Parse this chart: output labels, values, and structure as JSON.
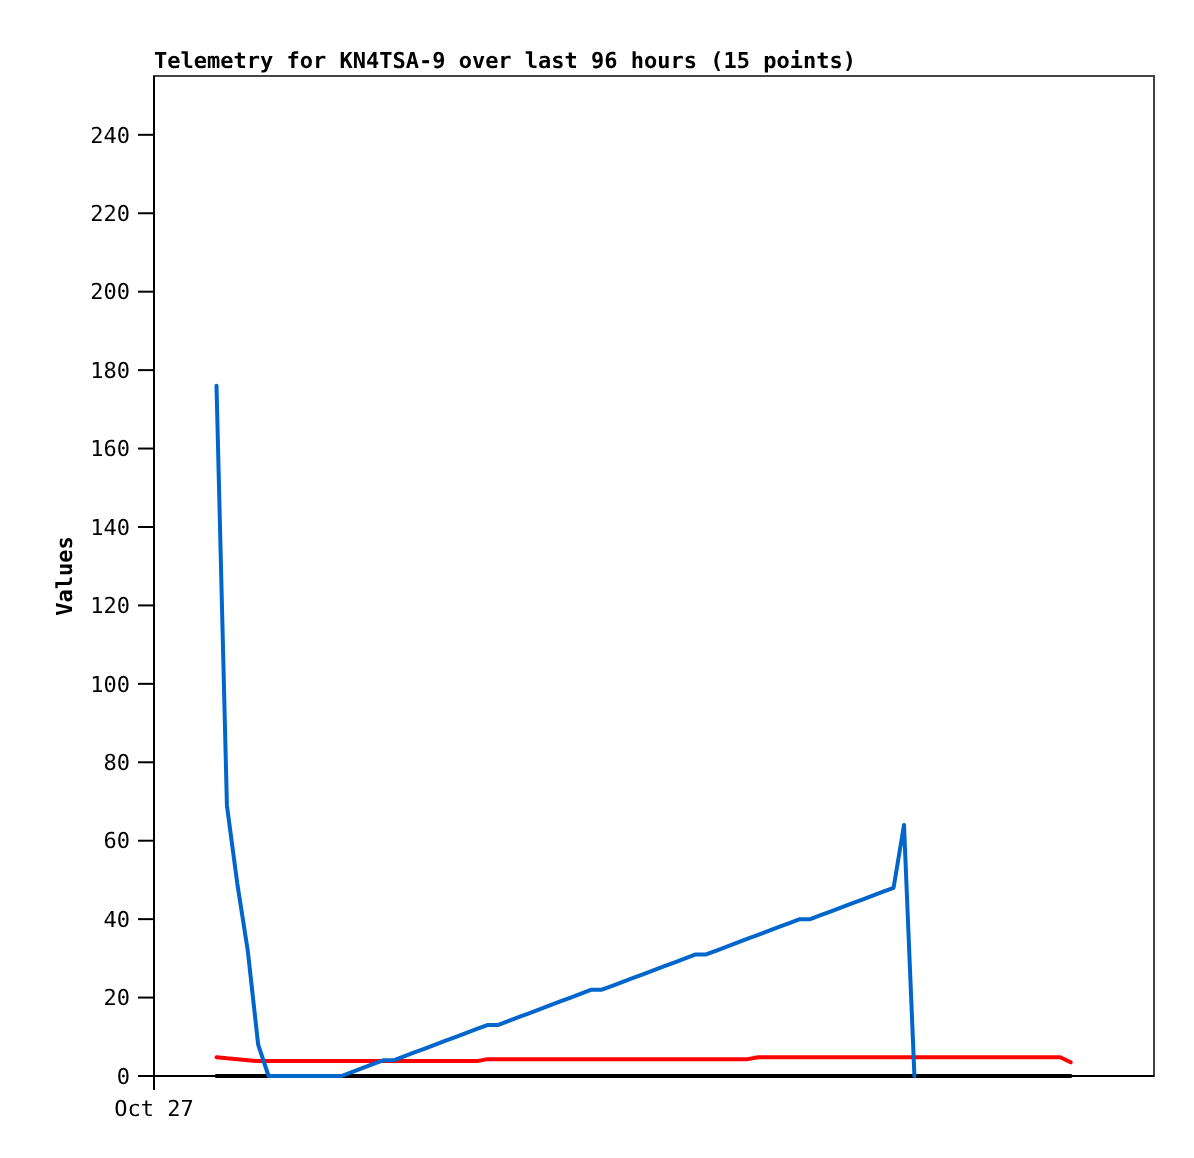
{
  "chart_data": {
    "type": "line",
    "title": "Telemetry for KN4TSA-9 over last 96 hours (15 points)",
    "ylabel": "Values",
    "categories": [
      "Oct 27",
      null,
      null,
      null,
      null,
      null,
      null,
      null,
      null,
      null,
      null,
      null,
      null,
      null,
      null,
      null,
      null,
      null,
      null,
      null,
      null,
      null,
      null,
      null,
      null,
      null,
      null,
      null,
      null,
      null,
      null,
      null,
      null,
      null,
      null,
      null,
      null,
      null,
      null,
      null,
      null,
      null,
      null,
      null,
      null,
      null,
      null,
      null,
      null,
      null,
      null,
      null,
      null,
      null,
      null,
      null,
      null,
      null,
      null,
      null,
      null,
      null,
      null,
      null,
      null,
      null,
      null,
      null,
      null,
      null,
      null,
      null,
      null,
      null,
      null,
      null,
      null,
      null,
      null,
      null,
      null,
      null,
      null,
      null,
      null,
      null,
      null,
      null,
      null,
      null,
      null,
      null,
      null,
      null,
      null,
      null,
      null
    ],
    "ylim": [
      0,
      255
    ],
    "yticks": [
      0,
      20,
      40,
      60,
      80,
      100,
      120,
      140,
      160,
      180,
      200,
      220,
      240
    ],
    "marker": "none",
    "line_style": "solid",
    "series": [
      {
        "color": "#000000",
        "values": [
          null,
          null,
          null,
          null,
          null,
          null,
          0,
          0,
          0,
          0,
          0,
          0,
          0,
          0,
          0,
          0,
          0,
          0,
          0,
          0,
          0,
          0,
          0,
          0,
          0,
          0,
          0,
          0,
          0,
          0,
          0,
          0,
          0,
          0,
          0,
          0,
          0,
          0,
          0,
          0,
          0,
          0,
          0,
          0,
          0,
          0,
          0,
          0,
          0,
          0,
          0,
          0,
          0,
          0,
          0,
          0,
          0,
          0,
          0,
          0,
          0,
          0,
          0,
          0,
          0,
          0,
          0,
          0,
          0,
          0,
          0,
          0,
          0,
          0,
          0,
          0,
          0,
          0,
          0,
          0,
          0,
          0,
          0,
          0,
          0,
          0,
          0,
          0,
          0,
          null,
          null,
          null,
          null,
          null,
          null,
          null,
          null
        ]
      },
      {
        "color": "#ff0000",
        "values": [
          null,
          null,
          null,
          null,
          null,
          null,
          4.8,
          4.5,
          4.3,
          4.0,
          3.8,
          3.8,
          3.8,
          3.8,
          3.8,
          3.8,
          3.8,
          3.8,
          3.8,
          3.8,
          3.8,
          3.8,
          3.8,
          3.8,
          3.8,
          3.8,
          3.8,
          3.8,
          3.8,
          3.8,
          3.8,
          3.8,
          4.3,
          4.3,
          4.3,
          4.3,
          4.3,
          4.3,
          4.3,
          4.3,
          4.3,
          4.3,
          4.3,
          4.3,
          4.3,
          4.3,
          4.3,
          4.3,
          4.3,
          4.3,
          4.3,
          4.3,
          4.3,
          4.3,
          4.3,
          4.3,
          4.3,
          4.3,
          4.8,
          4.8,
          4.8,
          4.8,
          4.8,
          4.8,
          4.8,
          4.8,
          4.8,
          4.8,
          4.8,
          4.8,
          4.8,
          4.8,
          4.8,
          4.8,
          4.8,
          4.8,
          4.8,
          4.8,
          4.8,
          4.8,
          4.8,
          4.8,
          4.8,
          4.8,
          4.8,
          4.8,
          4.8,
          4.8,
          3.5,
          null,
          null,
          null,
          null,
          null,
          null,
          null,
          null
        ]
      },
      {
        "color": "#0066cc",
        "values": [
          null,
          null,
          null,
          null,
          null,
          null,
          176,
          69,
          49,
          32,
          8,
          0,
          0,
          0,
          0,
          0,
          0,
          0,
          0,
          1,
          2,
          3,
          4,
          4,
          5,
          6,
          7,
          8,
          9,
          10,
          11,
          12,
          13,
          13,
          14,
          15,
          16,
          17,
          18,
          19,
          20,
          21,
          22,
          22,
          23,
          24,
          25,
          26,
          27,
          28,
          29,
          30,
          31,
          31,
          32,
          33,
          34,
          35,
          36,
          37,
          38,
          39,
          40,
          40,
          41,
          42,
          43,
          44,
          45,
          46,
          47,
          48,
          64,
          0,
          null,
          null,
          null,
          null,
          null,
          null,
          null,
          null,
          null,
          null,
          null,
          null,
          null,
          null,
          null,
          null,
          null,
          null,
          null,
          null,
          null,
          null,
          null
        ]
      }
    ]
  }
}
